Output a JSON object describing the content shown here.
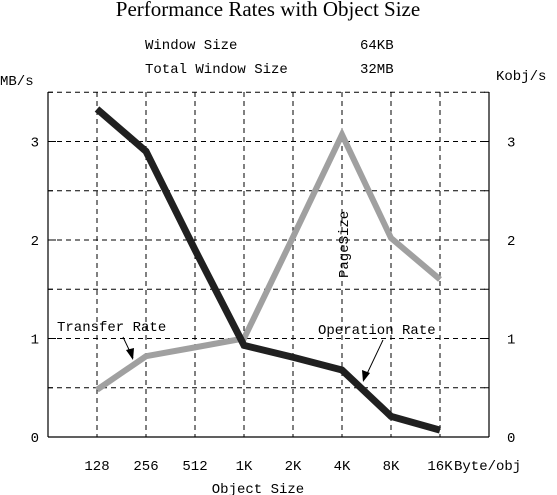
{
  "chart_data": {
    "type": "line",
    "title": "Performance Rates with Object Size",
    "subtitle_lines": [
      {
        "label": "Window Size",
        "value": "64KB"
      },
      {
        "label": "Total Window Size",
        "value": "32MB"
      }
    ],
    "xlabel": "Object Size",
    "x_unit": "Byte/obj",
    "ylabel_left": "MB/s",
    "ylabel_right": "Kobj/s",
    "categories": [
      "128",
      "256",
      "512",
      "1K",
      "2K",
      "4K",
      "8K",
      "16K"
    ],
    "ylim": [
      0,
      3.5
    ],
    "yticks": [
      0,
      1,
      2,
      3
    ],
    "grid": true,
    "series": [
      {
        "name": "Transfer Rate",
        "axis": "left",
        "color": "#a0a0a0",
        "values": [
          0.48,
          0.82,
          0.91,
          1.0,
          2.03,
          3.07,
          2.02,
          1.6
        ]
      },
      {
        "name": "Operation Rate",
        "axis": "right",
        "color": "#202020",
        "values": [
          3.33,
          2.9,
          1.9,
          0.93,
          0.81,
          0.68,
          0.21,
          0.07
        ]
      }
    ],
    "annotations": [
      {
        "text": "PageSize"
      }
    ]
  }
}
